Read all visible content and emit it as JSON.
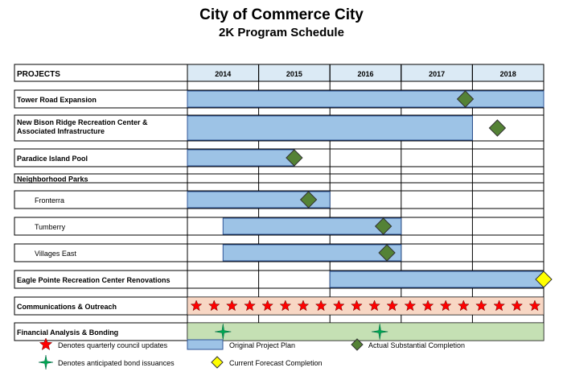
{
  "header": {
    "title": "City of Commerce City",
    "subtitle": "2K Program Schedule"
  },
  "colors": {
    "plan_bar": "#9dc3e6",
    "plan_bar_border": "#2f5597",
    "header_fill": "#dbeaf5",
    "actual_diamond": "#548235",
    "forecast_diamond": "#ffff00",
    "council_star": "#ff0000",
    "bond_star": "#00a651",
    "comm_band": "#f8d7c4",
    "fin_band": "#c5e0b4"
  },
  "chart_data": {
    "type": "table",
    "columns_header": "PROJECTS",
    "years": [
      "2014",
      "2015",
      "2016",
      "2017",
      "2018"
    ],
    "rows": [
      {
        "label": "Tower Road Expansion",
        "plan": [
          2014.0,
          2019.0
        ],
        "actual": 2017.9
      },
      {
        "label": "New Bison Ridge Recreation Center & Associated Infrastructure",
        "label_lines": [
          "New Bison Ridge Recreation Center &",
          "Associated Infrastructure"
        ],
        "plan": [
          2014.0,
          2018.0
        ],
        "actual": 2018.35
      },
      {
        "label": "Paradice Island Pool",
        "plan": [
          2014.0,
          2015.5
        ],
        "actual": 2015.5
      },
      {
        "label": "Neighborhood Parks",
        "section": true
      },
      {
        "label": "Fronterra",
        "indent": true,
        "plan": [
          2014.0,
          2016.0
        ],
        "actual": 2015.7
      },
      {
        "label": "Tumberry",
        "indent": true,
        "plan": [
          2014.5,
          2017.0
        ],
        "actual": 2016.75
      },
      {
        "label": "Villages East",
        "indent": true,
        "plan": [
          2014.5,
          2017.0
        ],
        "actual": 2016.8
      },
      {
        "label": "Eagle Pointe Recreation Center Renovations",
        "plan": [
          2016.0,
          2019.0
        ],
        "forecast": 2019.0
      },
      {
        "label": "Communications & Outreach",
        "band": "comm",
        "council_updates": [
          2014.125,
          2014.375,
          2014.625,
          2014.875,
          2015.125,
          2015.375,
          2015.625,
          2015.875,
          2016.125,
          2016.375,
          2016.625,
          2016.875,
          2017.125,
          2017.375,
          2017.625,
          2017.875,
          2018.125,
          2018.375,
          2018.625,
          2018.875
        ]
      },
      {
        "label": "Financial Analysis & Bonding",
        "band": "fin",
        "bond_issuances": [
          2014.5,
          2016.7
        ]
      }
    ],
    "legend": [
      {
        "symbol": "red-star",
        "label": "Denotes quarterly council updates"
      },
      {
        "symbol": "plan-bar",
        "label": "Original Project Plan"
      },
      {
        "symbol": "green-diamond",
        "label": "Actual Substantial Completion"
      },
      {
        "symbol": "green-star",
        "label": "Denotes anticipated bond issuances"
      },
      {
        "symbol": "yellow-diamond",
        "label": "Current Forecast Completion"
      }
    ]
  }
}
